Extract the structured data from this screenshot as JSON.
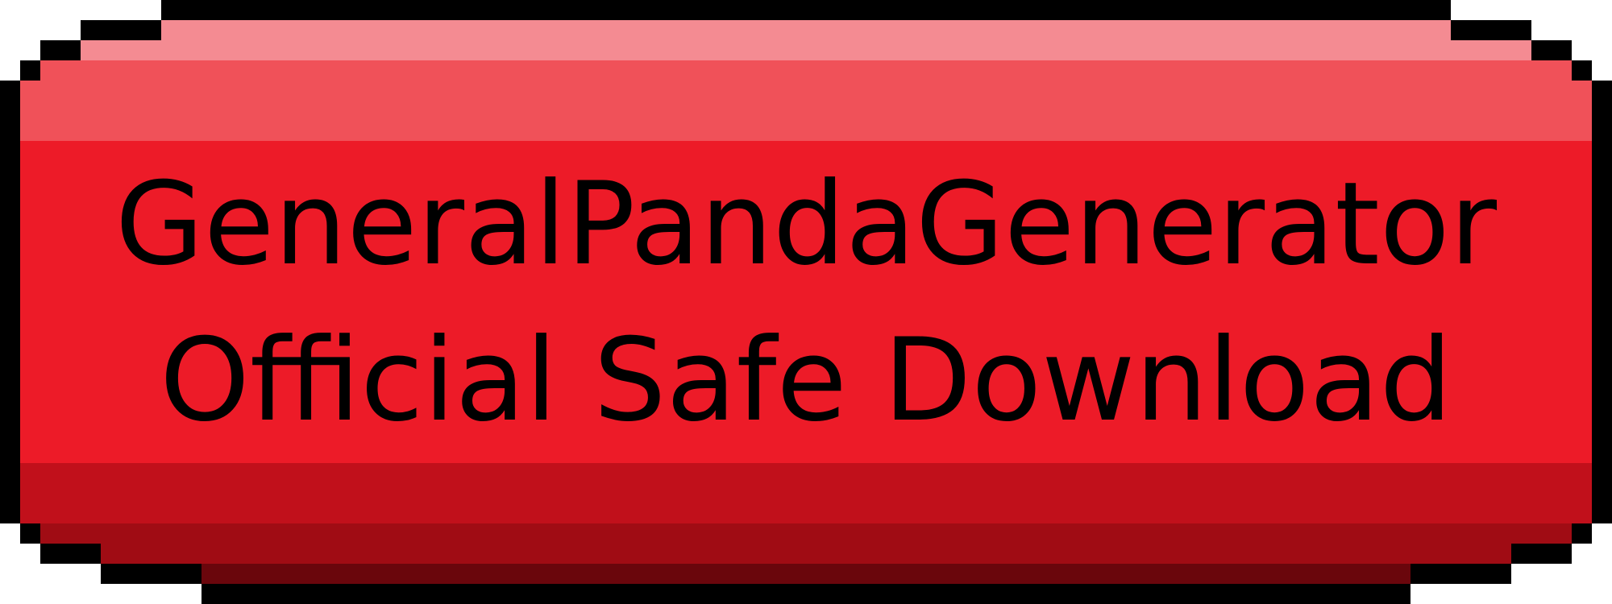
{
  "button": {
    "line1": "GeneralPandaGenerator",
    "line2": "Official Safe Download"
  },
  "colors": {
    "outline": "#000000",
    "highlight_top": "#f48b92",
    "highlight_mid": "#f05159",
    "face": "#ed1b28",
    "shade_1": "#c1101b",
    "shade_2": "#a00c14",
    "shade_3": "#6a060c",
    "background": "#ffffff",
    "text": "#000000"
  }
}
